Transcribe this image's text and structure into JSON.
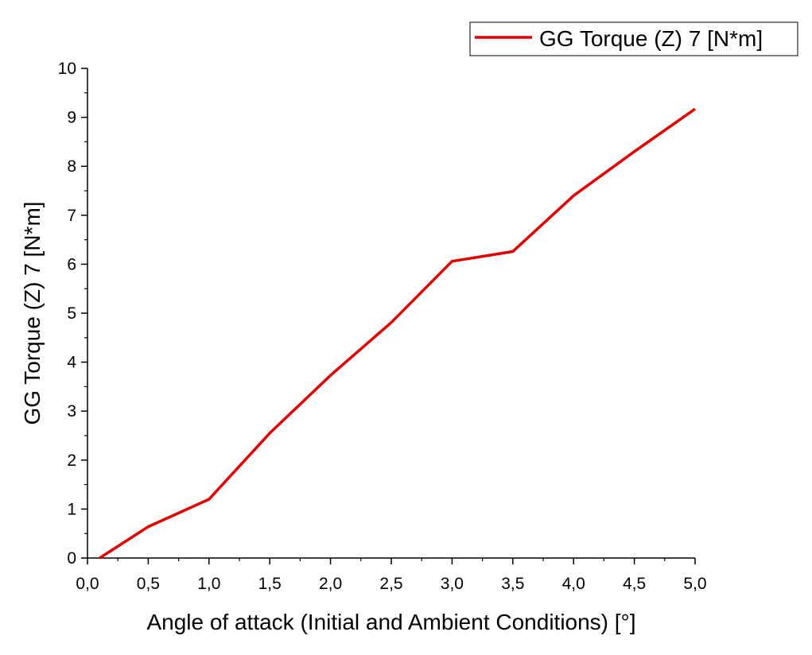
{
  "chart_data": {
    "type": "line",
    "xlabel": "Angle of attack (Initial and Ambient Conditions) [°]",
    "ylabel": "GG Torque (Z) 7 [N*m]",
    "xlim": [
      0,
      5
    ],
    "ylim": [
      0,
      10
    ],
    "x_tick_labels": [
      "0,0",
      "0,5",
      "1,0",
      "1,5",
      "2,0",
      "2,5",
      "3,0",
      "3,5",
      "4,0",
      "4,5",
      "5,0"
    ],
    "y_tick_labels": [
      "0",
      "1",
      "2",
      "3",
      "4",
      "5",
      "6",
      "7",
      "8",
      "9",
      "10"
    ],
    "grid": false,
    "legend_position": "top-right",
    "series": [
      {
        "name": "GG Torque (Z) 7 [N*m]",
        "color": "#e00000",
        "x": [
          0.1,
          0.5,
          1.0,
          1.5,
          2.0,
          2.5,
          3.0,
          3.5,
          4.0,
          4.5,
          5.0
        ],
        "y": [
          0.0,
          0.64,
          1.2,
          2.55,
          3.73,
          4.81,
          6.06,
          6.26,
          7.4,
          8.3,
          9.17
        ]
      }
    ]
  }
}
